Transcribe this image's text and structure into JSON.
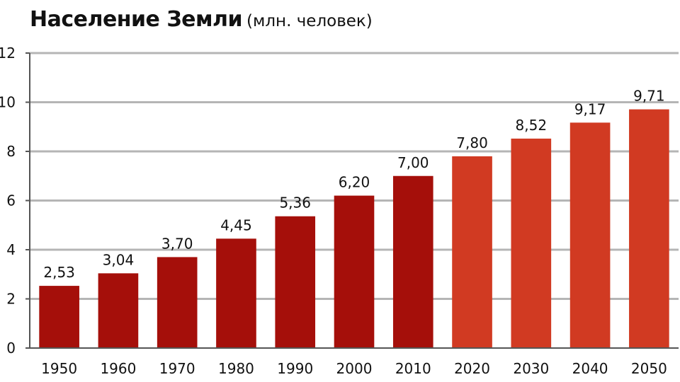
{
  "chart_data": {
    "type": "bar",
    "title": "Население Земли",
    "subtitle": "(млн. человек)",
    "xlabel": "",
    "ylabel": "",
    "categories": [
      "1950",
      "1960",
      "1970",
      "1980",
      "1990",
      "2000",
      "2010",
      "2020",
      "2030",
      "2040",
      "2050"
    ],
    "values": [
      2.53,
      3.04,
      3.7,
      4.45,
      5.36,
      6.2,
      7.0,
      7.8,
      8.52,
      9.17,
      9.71
    ],
    "value_labels": [
      "2,53",
      "3,04",
      "3,70",
      "4,45",
      "5,36",
      "6,20",
      "7,00",
      "7,80",
      "8,52",
      "9,17",
      "9,71"
    ],
    "ylim": [
      0,
      12
    ],
    "yticks": [
      0,
      2,
      4,
      6,
      8,
      10,
      12
    ],
    "grid": true,
    "legend": "none",
    "colors": {
      "historical": "#a50f0a",
      "projected": "#d13a22",
      "grid": "#b5b5b5",
      "axis": "#555555"
    },
    "projected_from_index": 7
  }
}
